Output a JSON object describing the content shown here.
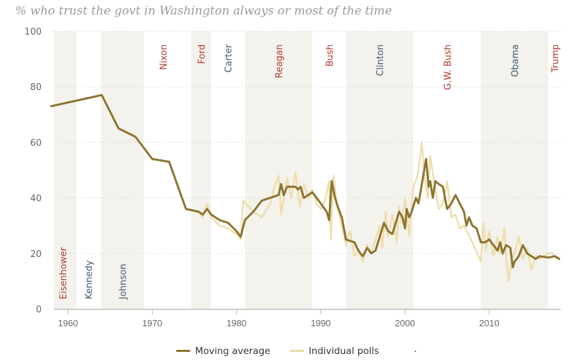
{
  "chart_data": {
    "type": "line",
    "title": "% who trust the govt in Washington always or most of the time",
    "xlabel": "",
    "ylabel": "",
    "xlim": [
      1958.3,
      2018.5
    ],
    "ylim": [
      0,
      100
    ],
    "yticks": [
      0,
      20,
      40,
      60,
      80,
      100
    ],
    "xticks": [
      1960,
      1970,
      1980,
      1990,
      2000,
      2010
    ],
    "grid": "horizontal-dotted",
    "legend_placement": "bottom",
    "legend": [
      {
        "label": "Moving average",
        "color": "#8c7430"
      },
      {
        "label": "Individual polls",
        "color": "#eddca8"
      }
    ],
    "legend_trailing_text": ".",
    "presidencies": [
      {
        "name": "Eisenhower",
        "start": 1958.3,
        "end": 1961,
        "party": "R",
        "shaded": true
      },
      {
        "name": "Kennedy",
        "start": 1961,
        "end": 1963.9,
        "party": "D",
        "shaded": false
      },
      {
        "name": "Johnson",
        "start": 1963.9,
        "end": 1969,
        "party": "D",
        "shaded": true
      },
      {
        "name": "Nixon",
        "start": 1969,
        "end": 1974.6,
        "party": "R",
        "shaded": false
      },
      {
        "name": "Ford",
        "start": 1974.6,
        "end": 1977,
        "party": "R",
        "shaded": true
      },
      {
        "name": "Carter",
        "start": 1977,
        "end": 1981,
        "party": "D",
        "shaded": false
      },
      {
        "name": "Reagan",
        "start": 1981,
        "end": 1989,
        "party": "R",
        "shaded": true
      },
      {
        "name": "Bush",
        "start": 1989,
        "end": 1993,
        "party": "R",
        "shaded": false
      },
      {
        "name": "Clinton",
        "start": 1993,
        "end": 2001,
        "party": "D",
        "shaded": true
      },
      {
        "name": "G.W. Bush",
        "start": 2001,
        "end": 2009,
        "party": "R",
        "shaded": false
      },
      {
        "name": "Obama",
        "start": 2009,
        "end": 2017,
        "party": "D",
        "shaded": true
      },
      {
        "name": "Trump",
        "start": 2017,
        "end": 2018.5,
        "party": "R",
        "shaded": false
      }
    ],
    "party_colors": {
      "R": "#b03a2e",
      "D": "#3d5a6e"
    },
    "series": [
      {
        "name": "Individual polls",
        "color": "#eddca8",
        "points": [
          [
            1958,
            73
          ],
          [
            1964,
            77
          ],
          [
            1966,
            65
          ],
          [
            1968,
            62
          ],
          [
            1970,
            54
          ],
          [
            1972,
            53
          ],
          [
            1974,
            36
          ],
          [
            1975.5,
            35
          ],
          [
            1976,
            33
          ],
          [
            1976.5,
            38
          ],
          [
            1977,
            33
          ],
          [
            1978,
            30
          ],
          [
            1979,
            29
          ],
          [
            1980,
            27
          ],
          [
            1980.5,
            25
          ],
          [
            1980.8,
            39
          ],
          [
            1982,
            35
          ],
          [
            1983,
            33
          ],
          [
            1984,
            38
          ],
          [
            1984.5,
            44
          ],
          [
            1985,
            48
          ],
          [
            1985.3,
            34
          ],
          [
            1986,
            47
          ],
          [
            1986.5,
            40
          ],
          [
            1987,
            49
          ],
          [
            1987.5,
            37
          ],
          [
            1988,
            45
          ],
          [
            1988.5,
            40
          ],
          [
            1989,
            43
          ],
          [
            1989.5,
            38
          ],
          [
            1990,
            36
          ],
          [
            1990.5,
            39
          ],
          [
            1991,
            46
          ],
          [
            1991.2,
            25
          ],
          [
            1991.5,
            48
          ],
          [
            1992,
            36
          ],
          [
            1992.5,
            30
          ],
          [
            1993,
            23
          ],
          [
            1993.5,
            28
          ],
          [
            1994,
            19
          ],
          [
            1994.5,
            21
          ],
          [
            1995,
            17
          ],
          [
            1995.5,
            23
          ],
          [
            1996,
            20
          ],
          [
            1996.5,
            25
          ],
          [
            1997,
            30
          ],
          [
            1997.3,
            22
          ],
          [
            1997.7,
            35
          ],
          [
            1998,
            26
          ],
          [
            1998.5,
            34
          ],
          [
            1999,
            24
          ],
          [
            1999.3,
            37
          ],
          [
            1999.6,
            31
          ],
          [
            2000,
            40
          ],
          [
            2000.5,
            26
          ],
          [
            2001,
            44
          ],
          [
            2001.5,
            48
          ],
          [
            2002,
            60
          ],
          [
            2002.3,
            48
          ],
          [
            2002.7,
            40
          ],
          [
            2003,
            55
          ],
          [
            2003.5,
            45
          ],
          [
            2004,
            36
          ],
          [
            2004.5,
            38
          ],
          [
            2005,
            46
          ],
          [
            2005.5,
            33
          ],
          [
            2006,
            34
          ],
          [
            2006.5,
            29
          ],
          [
            2007,
            30
          ],
          [
            2008,
            24
          ],
          [
            2009,
            17
          ],
          [
            2009.3,
            31
          ],
          [
            2009.6,
            21
          ],
          [
            2010,
            28
          ],
          [
            2010.5,
            19
          ],
          [
            2011,
            26
          ],
          [
            2011.3,
            20
          ],
          [
            2011.8,
            29
          ],
          [
            2012,
            19
          ],
          [
            2012.3,
            10
          ],
          [
            2012.7,
            18
          ],
          [
            2013,
            20
          ],
          [
            2013.5,
            26
          ],
          [
            2014,
            18
          ],
          [
            2014.5,
            22
          ],
          [
            2015,
            14
          ],
          [
            2015.5,
            19
          ],
          [
            2016,
            18
          ],
          [
            2017,
            20
          ],
          [
            2017.5,
            20
          ],
          [
            2018,
            18
          ]
        ]
      },
      {
        "name": "Moving average",
        "color": "#8c7430",
        "points": [
          [
            1958,
            73
          ],
          [
            1964,
            77
          ],
          [
            1966,
            65
          ],
          [
            1968,
            62
          ],
          [
            1970,
            54
          ],
          [
            1972,
            53
          ],
          [
            1974,
            36
          ],
          [
            1975.5,
            35
          ],
          [
            1976,
            34
          ],
          [
            1976.5,
            36
          ],
          [
            1977,
            34
          ],
          [
            1978,
            32
          ],
          [
            1979,
            31
          ],
          [
            1980,
            28
          ],
          [
            1980.5,
            26
          ],
          [
            1981,
            32
          ],
          [
            1982,
            35
          ],
          [
            1983,
            39
          ],
          [
            1984,
            40
          ],
          [
            1985,
            41
          ],
          [
            1985.3,
            45
          ],
          [
            1985.6,
            41
          ],
          [
            1986,
            44
          ],
          [
            1987,
            44
          ],
          [
            1987.3,
            43
          ],
          [
            1987.6,
            44
          ],
          [
            1988,
            40
          ],
          [
            1989,
            42
          ],
          [
            1990,
            38
          ],
          [
            1990.7,
            35
          ],
          [
            1991,
            32
          ],
          [
            1991.3,
            46
          ],
          [
            1991.7,
            40
          ],
          [
            1992,
            37
          ],
          [
            1992.5,
            33
          ],
          [
            1993,
            25
          ],
          [
            1994,
            24
          ],
          [
            1994.3,
            22
          ],
          [
            1994.7,
            20
          ],
          [
            1995,
            19
          ],
          [
            1995.5,
            22
          ],
          [
            1996,
            20
          ],
          [
            1996.5,
            21
          ],
          [
            1997,
            26
          ],
          [
            1997.5,
            31
          ],
          [
            1998,
            28
          ],
          [
            1998.5,
            27
          ],
          [
            1999,
            32
          ],
          [
            1999.3,
            35
          ],
          [
            1999.7,
            33
          ],
          [
            2000,
            29
          ],
          [
            2000.2,
            36
          ],
          [
            2000.5,
            33
          ],
          [
            2000.8,
            35
          ],
          [
            2001,
            37
          ],
          [
            2001.3,
            40
          ],
          [
            2001.6,
            38
          ],
          [
            2002,
            45
          ],
          [
            2002.5,
            54
          ],
          [
            2002.8,
            44
          ],
          [
            2003,
            46
          ],
          [
            2003.3,
            40
          ],
          [
            2003.6,
            46
          ],
          [
            2004,
            45
          ],
          [
            2004.5,
            44
          ],
          [
            2005,
            36
          ],
          [
            2005.5,
            38
          ],
          [
            2006,
            41
          ],
          [
            2006.5,
            38
          ],
          [
            2007,
            35
          ],
          [
            2007.3,
            30
          ],
          [
            2007.6,
            33
          ],
          [
            2008,
            30
          ],
          [
            2008.5,
            29
          ],
          [
            2009,
            24
          ],
          [
            2009.5,
            24
          ],
          [
            2010,
            25
          ],
          [
            2010.5,
            23
          ],
          [
            2011,
            21
          ],
          [
            2011.3,
            24
          ],
          [
            2011.6,
            20
          ],
          [
            2012,
            23
          ],
          [
            2012.5,
            22
          ],
          [
            2012.8,
            15
          ],
          [
            2013,
            17
          ],
          [
            2013.5,
            19
          ],
          [
            2014,
            23
          ],
          [
            2014.5,
            20
          ],
          [
            2015,
            19
          ],
          [
            2015.5,
            18
          ],
          [
            2016,
            19
          ],
          [
            2017,
            18.5
          ],
          [
            2017.8,
            19
          ],
          [
            2018.3,
            18
          ]
        ]
      }
    ]
  }
}
